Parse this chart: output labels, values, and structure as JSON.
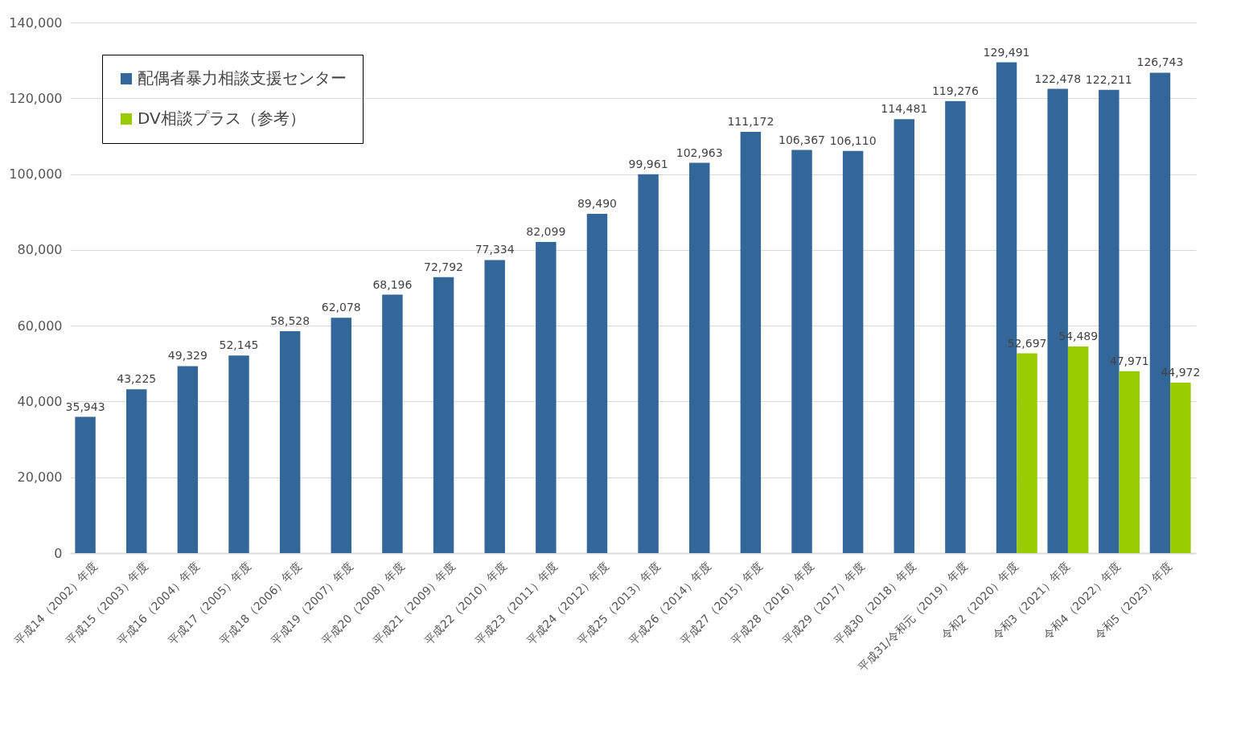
{
  "chart_data": {
    "type": "bar",
    "categories": [
      "平成14（2002）年度",
      "平成15（2003）年度",
      "平成16（2004）年度",
      "平成17（2005）年度",
      "平成18（2006）年度",
      "平成19（2007）年度",
      "平成20（2008）年度",
      "平成21（2009）年度",
      "平成22（2010）年度",
      "平成23（2011）年度",
      "平成24（2012）年度",
      "平成25（2013）年度",
      "平成26（2014）年度",
      "平成27（2015）年度",
      "平成28（2016）年度",
      "平成29（2017）年度",
      "平成30（2018）年度",
      "平成31/令和元（2019）年度",
      "令和2（2020）年度",
      "令和3（2021）年度",
      "令和4（2022）年度",
      "令和5（2023）年度"
    ],
    "series": [
      {
        "name": "配偶者暴力相談支援センター",
        "color": "#336699",
        "values": [
          35943,
          43225,
          49329,
          52145,
          58528,
          62078,
          68196,
          72792,
          77334,
          82099,
          89490,
          99961,
          102963,
          111172,
          106367,
          106110,
          114481,
          119276,
          129491,
          122478,
          122211,
          126743
        ],
        "value_labels": [
          "35,943",
          "43,225",
          "49,329",
          "52,145",
          "58,528",
          "62,078",
          "68,196",
          "72,792",
          "77,334",
          "82,099",
          "89,490",
          "99,961",
          "102,963",
          "111,172",
          "106,367",
          "106,110",
          "114,481",
          "119,276",
          "129,491",
          "122,478",
          "122,211",
          "126,743"
        ]
      },
      {
        "name": "DV相談プラス（参考）",
        "color": "#99cc00",
        "values": [
          null,
          null,
          null,
          null,
          null,
          null,
          null,
          null,
          null,
          null,
          null,
          null,
          null,
          null,
          null,
          null,
          null,
          null,
          52697,
          54489,
          47971,
          44972
        ],
        "value_labels": [
          null,
          null,
          null,
          null,
          null,
          null,
          null,
          null,
          null,
          null,
          null,
          null,
          null,
          null,
          null,
          null,
          null,
          null,
          "52,697",
          "54,489",
          "47,971",
          "44,972"
        ]
      }
    ],
    "ylim": [
      0,
      140000
    ],
    "yticks": [
      0,
      {
        "value": 20000,
        "label": "20,000"
      },
      {
        "value": 40000,
        "label": "40,000"
      },
      {
        "value": 60000,
        "label": "60,000"
      },
      {
        "value": 80000,
        "label": "80,000"
      },
      {
        "value": 100000,
        "label": "100,000"
      },
      {
        "value": 120000,
        "label": "120,000"
      },
      {
        "value": 140000,
        "label": "140,000"
      }
    ],
    "grid": "y",
    "legend": "top left"
  }
}
